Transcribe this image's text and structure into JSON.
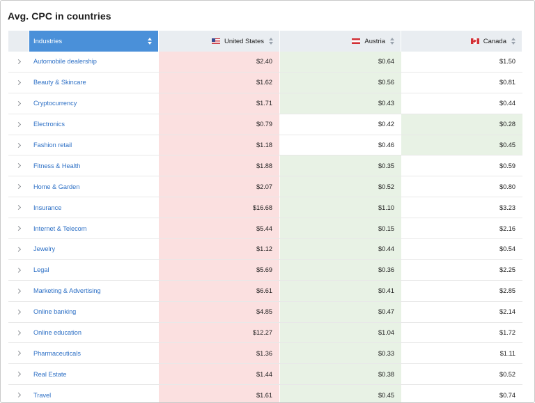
{
  "title": "Avg. CPC in countries",
  "columns": {
    "industries": "Industries",
    "us": "United States",
    "at": "Austria",
    "ca": "Canada"
  },
  "colors": {
    "header_bg": "#e9edf1",
    "active_header": "#4a90d9",
    "link": "#2c6fc5",
    "high_cpc": "#fbe0e0",
    "low_cpc": "#e8f2e5"
  },
  "icons": {
    "expand": "chevron-right-icon",
    "sort": "sort-arrows-icon",
    "us_flag": "us-flag-icon",
    "at_flag": "austria-flag-icon",
    "ca_flag": "canada-flag-icon"
  },
  "rows": [
    {
      "industry": "Automobile dealership",
      "us": "$2.40",
      "at": "$0.64",
      "ca": "$1.50",
      "us_bg": "red",
      "at_bg": "green",
      "ca_bg": "white"
    },
    {
      "industry": "Beauty & Skincare",
      "us": "$1.62",
      "at": "$0.56",
      "ca": "$0.81",
      "us_bg": "red",
      "at_bg": "green",
      "ca_bg": "white"
    },
    {
      "industry": "Cryptocurrency",
      "us": "$1.71",
      "at": "$0.43",
      "ca": "$0.44",
      "us_bg": "red",
      "at_bg": "green",
      "ca_bg": "white"
    },
    {
      "industry": "Electronics",
      "us": "$0.79",
      "at": "$0.42",
      "ca": "$0.28",
      "us_bg": "red",
      "at_bg": "white",
      "ca_bg": "green"
    },
    {
      "industry": "Fashion retail",
      "us": "$1.18",
      "at": "$0.46",
      "ca": "$0.45",
      "us_bg": "red",
      "at_bg": "white",
      "ca_bg": "green"
    },
    {
      "industry": "Fitness & Health",
      "us": "$1.88",
      "at": "$0.35",
      "ca": "$0.59",
      "us_bg": "red",
      "at_bg": "green",
      "ca_bg": "white"
    },
    {
      "industry": "Home & Garden",
      "us": "$2.07",
      "at": "$0.52",
      "ca": "$0.80",
      "us_bg": "red",
      "at_bg": "green",
      "ca_bg": "white"
    },
    {
      "industry": "Insurance",
      "us": "$16.68",
      "at": "$1.10",
      "ca": "$3.23",
      "us_bg": "red",
      "at_bg": "green",
      "ca_bg": "white"
    },
    {
      "industry": "Internet & Telecom",
      "us": "$5.44",
      "at": "$0.15",
      "ca": "$2.16",
      "us_bg": "red",
      "at_bg": "green",
      "ca_bg": "white"
    },
    {
      "industry": "Jewelry",
      "us": "$1.12",
      "at": "$0.44",
      "ca": "$0.54",
      "us_bg": "red",
      "at_bg": "green",
      "ca_bg": "white"
    },
    {
      "industry": "Legal",
      "us": "$5.69",
      "at": "$0.36",
      "ca": "$2.25",
      "us_bg": "red",
      "at_bg": "green",
      "ca_bg": "white"
    },
    {
      "industry": "Marketing & Advertising",
      "us": "$6.61",
      "at": "$0.41",
      "ca": "$2.85",
      "us_bg": "red",
      "at_bg": "green",
      "ca_bg": "white"
    },
    {
      "industry": "Online banking",
      "us": "$4.85",
      "at": "$0.47",
      "ca": "$2.14",
      "us_bg": "red",
      "at_bg": "green",
      "ca_bg": "white"
    },
    {
      "industry": "Online education",
      "us": "$12.27",
      "at": "$1.04",
      "ca": "$1.72",
      "us_bg": "red",
      "at_bg": "green",
      "ca_bg": "white"
    },
    {
      "industry": "Pharmaceuticals",
      "us": "$1.36",
      "at": "$0.33",
      "ca": "$1.11",
      "us_bg": "red",
      "at_bg": "green",
      "ca_bg": "white"
    },
    {
      "industry": "Real Estate",
      "us": "$1.44",
      "at": "$0.38",
      "ca": "$0.52",
      "us_bg": "red",
      "at_bg": "green",
      "ca_bg": "white"
    },
    {
      "industry": "Travel",
      "us": "$1.61",
      "at": "$0.45",
      "ca": "$0.74",
      "us_bg": "red",
      "at_bg": "green",
      "ca_bg": "white"
    }
  ]
}
